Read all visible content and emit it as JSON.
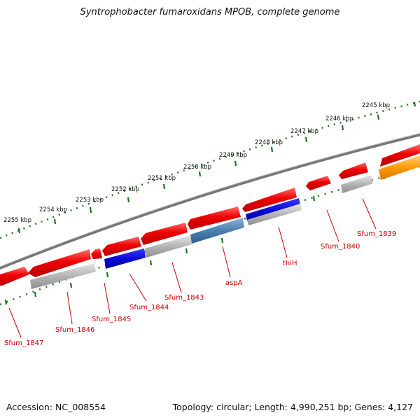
{
  "title": "Syntrophobacter fumaroxidans MPOB, complete genome",
  "footer": {
    "accession": "Accession: NC_008554",
    "summary": "Topology: circular; Length: 4,990,251 bp; Genes: 4,127"
  },
  "scale": [
    {
      "label": "2245 kbp"
    },
    {
      "label": "2246 kbp"
    },
    {
      "label": "2247 kbp"
    },
    {
      "label": "2248 kbp"
    },
    {
      "label": "2249 kbp"
    },
    {
      "label": "2250 kbp"
    },
    {
      "label": "2251 kbp"
    },
    {
      "label": "2252 kbp"
    },
    {
      "label": "2253 kbp"
    },
    {
      "label": "2254 kbp"
    },
    {
      "label": "2255 kbp"
    }
  ],
  "gene_labels": [
    {
      "label": "Sfum_1839"
    },
    {
      "label": "Sfum_1840"
    },
    {
      "label": "thiH"
    },
    {
      "label": "aspA"
    },
    {
      "label": "Sfum_1843"
    },
    {
      "label": "Sfum_1844"
    },
    {
      "label": "Sfum_1845"
    },
    {
      "label": "Sfum_1846"
    },
    {
      "label": "Sfum_1847"
    }
  ],
  "colors": {
    "cds": "#e8000a",
    "gene": "#aaaaaa",
    "highlight_blue": "#1010dd",
    "steel_blue": "#4a7fb0",
    "orange": "#ff9900",
    "backbone": "#777777",
    "scale_ticks": "#1a7a1a",
    "label_text": "#cc0000"
  }
}
